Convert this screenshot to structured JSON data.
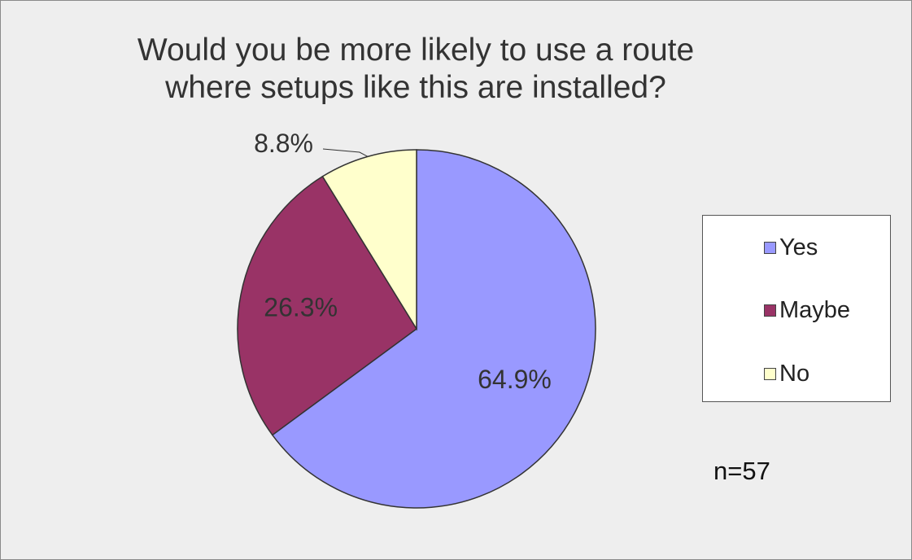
{
  "chart_data": {
    "type": "pie",
    "title": "Would you be more likely to use a route where setups like this are installed?",
    "title_lines": [
      "Would you be more likely to use a route",
      "where setups like this are installed?"
    ],
    "categories": [
      "Yes",
      "Maybe",
      "No"
    ],
    "values": [
      64.9,
      26.3,
      8.8
    ],
    "value_labels": [
      "64.9%",
      "26.3%",
      "8.8%"
    ],
    "colors": [
      "#9999ff",
      "#993366",
      "#ffffcc"
    ],
    "legend": {
      "placement": "right",
      "entries": [
        "Yes",
        "Maybe",
        "No"
      ]
    },
    "annotation": "n=57"
  }
}
